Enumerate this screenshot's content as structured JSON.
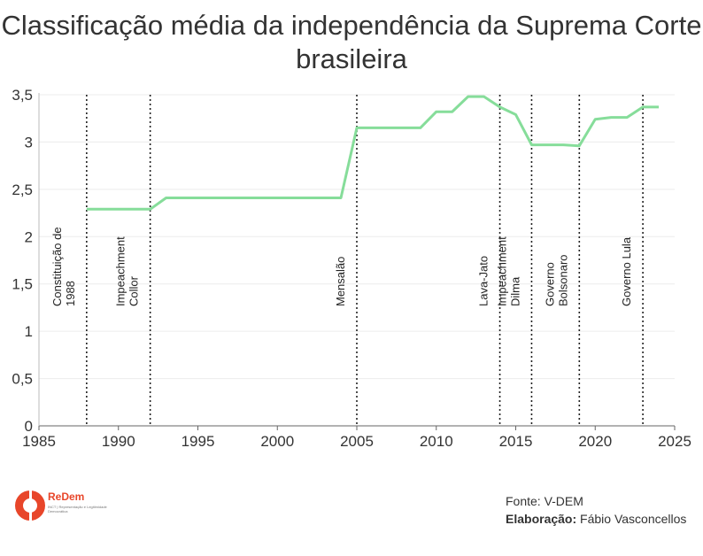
{
  "chart_data": {
    "type": "line",
    "title": "Classificação média da independência da Suprema Corte brasileira",
    "xlim": [
      1985,
      2025
    ],
    "ylim": [
      0,
      3.5
    ],
    "xticks": [
      1985,
      1990,
      1995,
      2000,
      2005,
      2010,
      2015,
      2020,
      2025
    ],
    "yticks": [
      "0",
      "0,5",
      "1",
      "1,5",
      "2",
      "2,5",
      "3",
      "3,5"
    ],
    "ytick_values": [
      0,
      0.5,
      1,
      1.5,
      2,
      2.5,
      3,
      3.5
    ],
    "line_color": "#86dd9a",
    "series": [
      {
        "x": [
          1988,
          1989,
          1990,
          1991,
          1992,
          1993,
          1994,
          1995,
          1996,
          1997,
          1998,
          1999,
          2000,
          2001,
          2002,
          2003,
          2004,
          2005,
          2006,
          2007,
          2008,
          2009,
          2010,
          2011,
          2012,
          2013,
          2014,
          2015,
          2016,
          2017,
          2018,
          2019,
          2020,
          2021,
          2022,
          2023,
          2024
        ],
        "values": [
          2.29,
          2.29,
          2.29,
          2.29,
          2.29,
          2.41,
          2.41,
          2.41,
          2.41,
          2.41,
          2.41,
          2.41,
          2.41,
          2.41,
          2.41,
          2.41,
          2.41,
          3.15,
          3.15,
          3.15,
          3.15,
          3.15,
          3.32,
          3.32,
          3.48,
          3.48,
          3.37,
          3.29,
          2.97,
          2.97,
          2.97,
          2.96,
          3.24,
          3.26,
          3.26,
          3.37,
          3.37
        ]
      }
    ],
    "events": [
      {
        "x": 1988,
        "lines": [
          "Constituição de",
          "1988"
        ]
      },
      {
        "x": 1992,
        "lines": [
          "Impeachment",
          "Collor"
        ]
      },
      {
        "x": 2005,
        "lines": [
          "Mensalão"
        ]
      },
      {
        "x": 2014,
        "lines": [
          "Lava-Jato"
        ]
      },
      {
        "x": 2016,
        "lines": [
          "Impeachment",
          "Dilma"
        ]
      },
      {
        "x": 2019,
        "lines": [
          "Governo",
          "Bolsonaro"
        ]
      },
      {
        "x": 2023,
        "lines": [
          "Governo Lula"
        ]
      }
    ]
  },
  "logo": {
    "name": "ReDem",
    "subtitle": "INCT | Representação e Legitimidade Democrática",
    "color": "#e8462a"
  },
  "source": {
    "fonte_label": "Fonte: V-DEM",
    "elab_label": "Elaboração:",
    "elab_value": "Fábio Vasconcellos"
  }
}
